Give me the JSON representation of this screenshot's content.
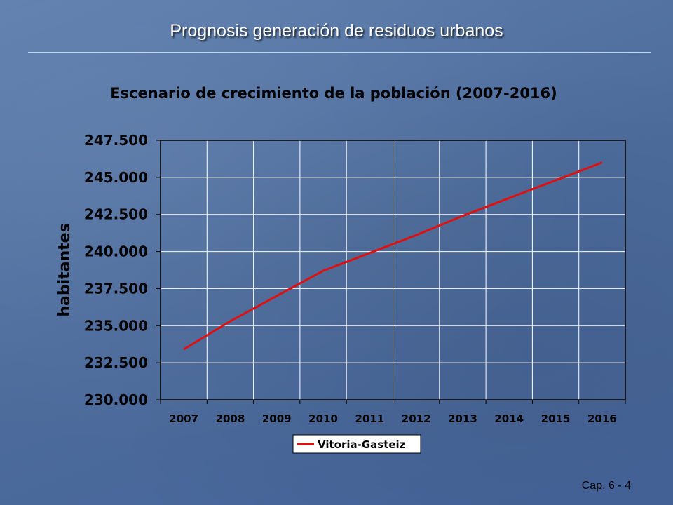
{
  "slide": {
    "title": "Prognosis generación de residuos urbanos",
    "page_label": "Cap. 6 - 4"
  },
  "colors": {
    "series": "#dd1111",
    "plot_border": "#000000",
    "grid": "#ffffff"
  },
  "chart_data": {
    "type": "line",
    "title": "Escenario de crecimiento de la población (2007-2016)",
    "xlabel": "",
    "ylabel": "habitantes",
    "categories": [
      "2007",
      "2008",
      "2009",
      "2010",
      "2011",
      "2012",
      "2013",
      "2014",
      "2015",
      "2016"
    ],
    "series": [
      {
        "name": "Vitoria-Gasteiz",
        "values": [
          233400,
          235300,
          237000,
          238700,
          239900,
          241100,
          242400,
          243600,
          244800,
          246000
        ]
      }
    ],
    "ylim": [
      230000,
      247500
    ],
    "yticks": [
      "230.000",
      "232.500",
      "235.000",
      "237.500",
      "240.000",
      "242.500",
      "245.000",
      "247.500"
    ],
    "grid": true,
    "legend_position": "bottom"
  }
}
